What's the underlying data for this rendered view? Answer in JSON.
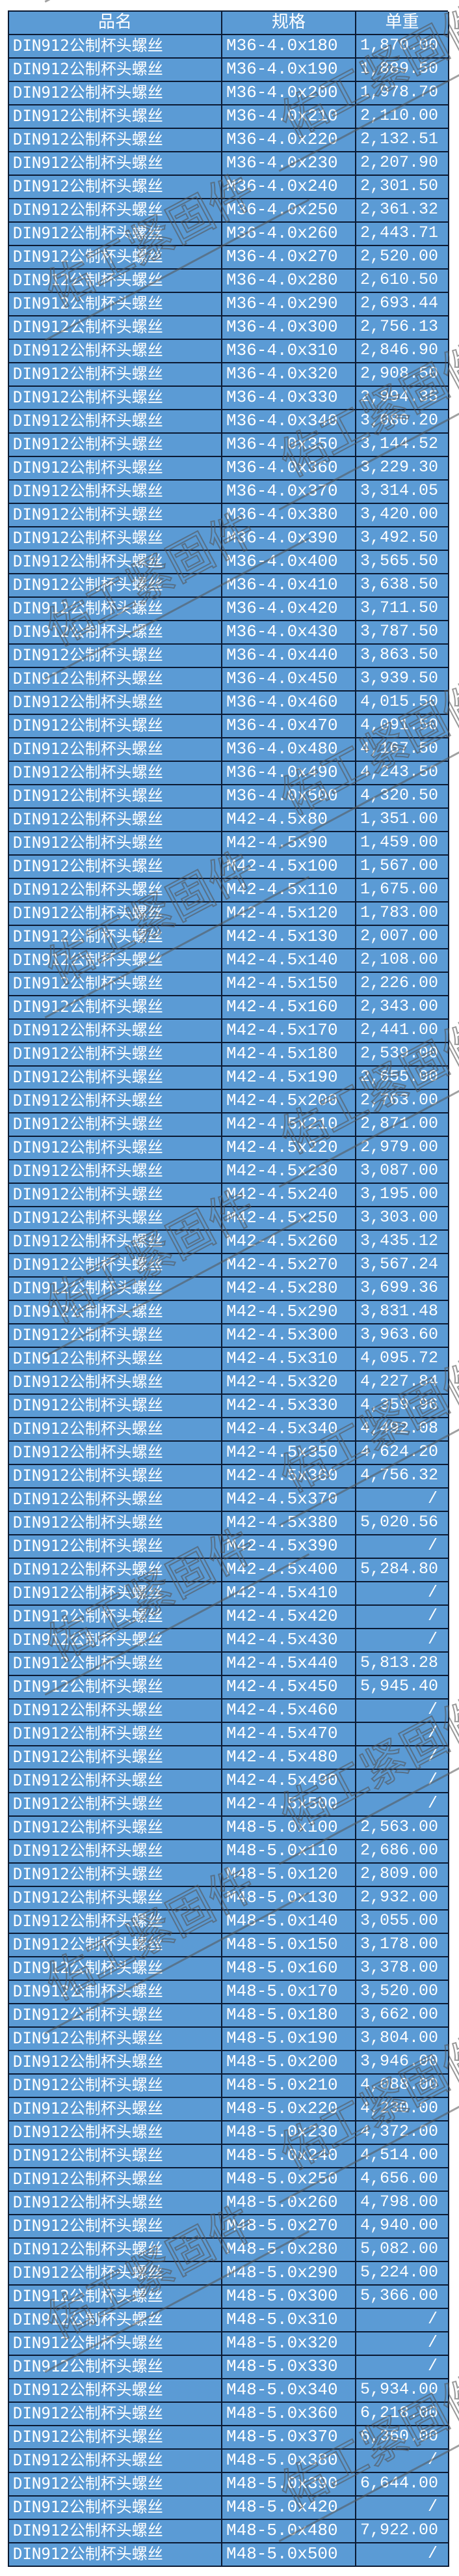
{
  "table": {
    "headers": [
      "品名",
      "规格",
      "单重"
    ],
    "rows": [
      [
        "DIN912公制杯头螺丝",
        "M36-4.0x180",
        "1,870.00"
      ],
      [
        "DIN912公制杯头螺丝",
        "M36-4.0x190",
        "1,889.50"
      ],
      [
        "DIN912公制杯头螺丝",
        "M36-4.0x200",
        "1,978.70"
      ],
      [
        "DIN912公制杯头螺丝",
        "M36-4.0x210",
        "2,110.00"
      ],
      [
        "DIN912公制杯头螺丝",
        "M36-4.0x220",
        "2,132.51"
      ],
      [
        "DIN912公制杯头螺丝",
        "M36-4.0x230",
        "2,207.90"
      ],
      [
        "DIN912公制杯头螺丝",
        "M36-4.0x240",
        "2,301.50"
      ],
      [
        "DIN912公制杯头螺丝",
        "M36-4.0x250",
        "2,361.32"
      ],
      [
        "DIN912公制杯头螺丝",
        "M36-4.0x260",
        "2,443.71"
      ],
      [
        "DIN912公制杯头螺丝",
        "M36-4.0x270",
        "2,520.00"
      ],
      [
        "DIN912公制杯头螺丝",
        "M36-4.0x280",
        "2,610.50"
      ],
      [
        "DIN912公制杯头螺丝",
        "M36-4.0x290",
        "2,693.44"
      ],
      [
        "DIN912公制杯头螺丝",
        "M36-4.0x300",
        "2,756.13"
      ],
      [
        "DIN912公制杯头螺丝",
        "M36-4.0x310",
        "2,846.90"
      ],
      [
        "DIN912公制杯头螺丝",
        "M36-4.0x320",
        "2,908.50"
      ],
      [
        "DIN912公制杯头螺丝",
        "M36-4.0x330",
        "2,994.35"
      ],
      [
        "DIN912公制杯头螺丝",
        "M36-4.0x340",
        "3,080.20"
      ],
      [
        "DIN912公制杯头螺丝",
        "M36-4.0x350",
        "3,144.52"
      ],
      [
        "DIN912公制杯头螺丝",
        "M36-4.0x360",
        "3,229.30"
      ],
      [
        "DIN912公制杯头螺丝",
        "M36-4.0x370",
        "3,314.05"
      ],
      [
        "DIN912公制杯头螺丝",
        "M36-4.0x380",
        "3,420.00"
      ],
      [
        "DIN912公制杯头螺丝",
        "M36-4.0x390",
        "3,492.50"
      ],
      [
        "DIN912公制杯头螺丝",
        "M36-4.0x400",
        "3,565.50"
      ],
      [
        "DIN912公制杯头螺丝",
        "M36-4.0x410",
        "3,638.50"
      ],
      [
        "DIN912公制杯头螺丝",
        "M36-4.0x420",
        "3,711.50"
      ],
      [
        "DIN912公制杯头螺丝",
        "M36-4.0x430",
        "3,787.50"
      ],
      [
        "DIN912公制杯头螺丝",
        "M36-4.0x440",
        "3,863.50"
      ],
      [
        "DIN912公制杯头螺丝",
        "M36-4.0x450",
        "3,939.50"
      ],
      [
        "DIN912公制杯头螺丝",
        "M36-4.0x460",
        "4,015.50"
      ],
      [
        "DIN912公制杯头螺丝",
        "M36-4.0x470",
        "4,091.50"
      ],
      [
        "DIN912公制杯头螺丝",
        "M36-4.0x480",
        "4,167.50"
      ],
      [
        "DIN912公制杯头螺丝",
        "M36-4.0x490",
        "4,243.50"
      ],
      [
        "DIN912公制杯头螺丝",
        "M36-4.0x500",
        "4,320.50"
      ],
      [
        "DIN912公制杯头螺丝",
        "M42-4.5x80",
        "1,351.00"
      ],
      [
        "DIN912公制杯头螺丝",
        "M42-4.5x90",
        "1,459.00"
      ],
      [
        "DIN912公制杯头螺丝",
        "M42-4.5x100",
        "1,567.00"
      ],
      [
        "DIN912公制杯头螺丝",
        "M42-4.5x110",
        "1,675.00"
      ],
      [
        "DIN912公制杯头螺丝",
        "M42-4.5x120",
        "1,783.00"
      ],
      [
        "DIN912公制杯头螺丝",
        "M42-4.5x130",
        "2,007.00"
      ],
      [
        "DIN912公制杯头螺丝",
        "M42-4.5x140",
        "2,108.00"
      ],
      [
        "DIN912公制杯头螺丝",
        "M42-4.5x150",
        "2,226.00"
      ],
      [
        "DIN912公制杯头螺丝",
        "M42-4.5x160",
        "2,343.00"
      ],
      [
        "DIN912公制杯头螺丝",
        "M42-4.5x170",
        "2,441.00"
      ],
      [
        "DIN912公制杯头螺丝",
        "M42-4.5x180",
        "2,539.00"
      ],
      [
        "DIN912公制杯头螺丝",
        "M42-4.5x190",
        "2,655.00"
      ],
      [
        "DIN912公制杯头螺丝",
        "M42-4.5x200",
        "2,763.00"
      ],
      [
        "DIN912公制杯头螺丝",
        "M42-4.5x210",
        "2,871.00"
      ],
      [
        "DIN912公制杯头螺丝",
        "M42-4.5x220",
        "2,979.00"
      ],
      [
        "DIN912公制杯头螺丝",
        "M42-4.5x230",
        "3,087.00"
      ],
      [
        "DIN912公制杯头螺丝",
        "M42-4.5x240",
        "3,195.00"
      ],
      [
        "DIN912公制杯头螺丝",
        "M42-4.5x250",
        "3,303.00"
      ],
      [
        "DIN912公制杯头螺丝",
        "M42-4.5x260",
        "3,435.12"
      ],
      [
        "DIN912公制杯头螺丝",
        "M42-4.5x270",
        "3,567.24"
      ],
      [
        "DIN912公制杯头螺丝",
        "M42-4.5x280",
        "3,699.36"
      ],
      [
        "DIN912公制杯头螺丝",
        "M42-4.5x290",
        "3,831.48"
      ],
      [
        "DIN912公制杯头螺丝",
        "M42-4.5x300",
        "3,963.60"
      ],
      [
        "DIN912公制杯头螺丝",
        "M42-4.5x310",
        "4,095.72"
      ],
      [
        "DIN912公制杯头螺丝",
        "M42-4.5x320",
        "4,227.84"
      ],
      [
        "DIN912公制杯头螺丝",
        "M42-4.5x330",
        "4,359.96"
      ],
      [
        "DIN912公制杯头螺丝",
        "M42-4.5x340",
        "4,492.08"
      ],
      [
        "DIN912公制杯头螺丝",
        "M42-4.5x350",
        "4,624.20"
      ],
      [
        "DIN912公制杯头螺丝",
        "M42-4.5x360",
        "4,756.32"
      ],
      [
        "DIN912公制杯头螺丝",
        "M42-4.5x370",
        "/"
      ],
      [
        "DIN912公制杯头螺丝",
        "M42-4.5x380",
        "5,020.56"
      ],
      [
        "DIN912公制杯头螺丝",
        "M42-4.5x390",
        "/"
      ],
      [
        "DIN912公制杯头螺丝",
        "M42-4.5x400",
        "5,284.80"
      ],
      [
        "DIN912公制杯头螺丝",
        "M42-4.5x410",
        "/"
      ],
      [
        "DIN912公制杯头螺丝",
        "M42-4.5x420",
        "/"
      ],
      [
        "DIN912公制杯头螺丝",
        "M42-4.5x430",
        "/"
      ],
      [
        "DIN912公制杯头螺丝",
        "M42-4.5x440",
        "5,813.28"
      ],
      [
        "DIN912公制杯头螺丝",
        "M42-4.5x450",
        "5,945.40"
      ],
      [
        "DIN912公制杯头螺丝",
        "M42-4.5x460",
        "/"
      ],
      [
        "DIN912公制杯头螺丝",
        "M42-4.5x470",
        "/"
      ],
      [
        "DIN912公制杯头螺丝",
        "M42-4.5x480",
        "/"
      ],
      [
        "DIN912公制杯头螺丝",
        "M42-4.5x490",
        "/"
      ],
      [
        "DIN912公制杯头螺丝",
        "M42-4.5x500",
        "/"
      ],
      [
        "DIN912公制杯头螺丝",
        "M48-5.0x100",
        "2,563.00"
      ],
      [
        "DIN912公制杯头螺丝",
        "M48-5.0x110",
        "2,686.00"
      ],
      [
        "DIN912公制杯头螺丝",
        "M48-5.0x120",
        "2,809.00"
      ],
      [
        "DIN912公制杯头螺丝",
        "M48-5.0x130",
        "2,932.00"
      ],
      [
        "DIN912公制杯头螺丝",
        "M48-5.0x140",
        "3,055.00"
      ],
      [
        "DIN912公制杯头螺丝",
        "M48-5.0x150",
        "3,178.00"
      ],
      [
        "DIN912公制杯头螺丝",
        "M48-5.0x160",
        "3,378.00"
      ],
      [
        "DIN912公制杯头螺丝",
        "M48-5.0x170",
        "3,520.00"
      ],
      [
        "DIN912公制杯头螺丝",
        "M48-5.0x180",
        "3,662.00"
      ],
      [
        "DIN912公制杯头螺丝",
        "M48-5.0x190",
        "3,804.00"
      ],
      [
        "DIN912公制杯头螺丝",
        "M48-5.0x200",
        "3,946.00"
      ],
      [
        "DIN912公制杯头螺丝",
        "M48-5.0x210",
        "4,088.00"
      ],
      [
        "DIN912公制杯头螺丝",
        "M48-5.0x220",
        "4,230.00"
      ],
      [
        "DIN912公制杯头螺丝",
        "M48-5.0x230",
        "4,372.00"
      ],
      [
        "DIN912公制杯头螺丝",
        "M48-5.0x240",
        "4,514.00"
      ],
      [
        "DIN912公制杯头螺丝",
        "M48-5.0x250",
        "4,656.00"
      ],
      [
        "DIN912公制杯头螺丝",
        "M48-5.0x260",
        "4,798.00"
      ],
      [
        "DIN912公制杯头螺丝",
        "M48-5.0x270",
        "4,940.00"
      ],
      [
        "DIN912公制杯头螺丝",
        "M48-5.0x280",
        "5,082.00"
      ],
      [
        "DIN912公制杯头螺丝",
        "M48-5.0x290",
        "5,224.00"
      ],
      [
        "DIN912公制杯头螺丝",
        "M48-5.0x300",
        "5,366.00"
      ],
      [
        "DIN912公制杯头螺丝",
        "M48-5.0x310",
        "/"
      ],
      [
        "DIN912公制杯头螺丝",
        "M48-5.0x320",
        "/"
      ],
      [
        "DIN912公制杯头螺丝",
        "M48-5.0x330",
        "/"
      ],
      [
        "DIN912公制杯头螺丝",
        "M48-5.0x340",
        "5,934.00"
      ],
      [
        "DIN912公制杯头螺丝",
        "M48-5.0x360",
        "6,218.00"
      ],
      [
        "DIN912公制杯头螺丝",
        "M48-5.0x370",
        "6,360.00"
      ],
      [
        "DIN912公制杯头螺丝",
        "M48-5.0x380",
        "/"
      ],
      [
        "DIN912公制杯头螺丝",
        "M48-5.0x390",
        "6,644.00"
      ],
      [
        "DIN912公制杯头螺丝",
        "M48-5.0x420",
        "/"
      ],
      [
        "DIN912公制杯头螺丝",
        "M48-5.0x480",
        "7,922.00"
      ],
      [
        "DIN912公制杯头螺丝",
        "M48-5.0x500",
        "/"
      ]
    ]
  },
  "watermark": {
    "text": "佑工紧固件",
    "color": "#555555"
  },
  "colors": {
    "cell_bg": "#5b9bd5",
    "border": "#0b1a33",
    "text": "#ffffff"
  }
}
